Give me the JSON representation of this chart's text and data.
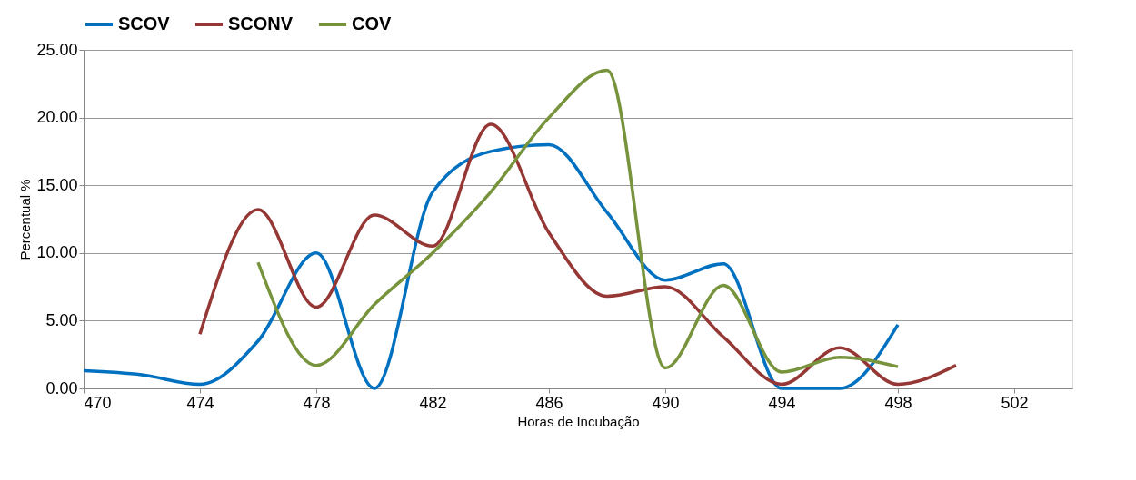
{
  "chart_data": {
    "type": "line",
    "xlabel": "Horas de Incubação",
    "ylabel": "Percentual %",
    "xlim": [
      470,
      504
    ],
    "xticks": [
      470,
      474,
      478,
      482,
      486,
      490,
      494,
      498,
      502
    ],
    "ylim": [
      0,
      25
    ],
    "yticks": [
      {
        "value": 0,
        "label": "0.00"
      },
      {
        "value": 5,
        "label": "5.00"
      },
      {
        "value": 10,
        "label": "10.00"
      },
      {
        "value": 15,
        "label": "15.00"
      },
      {
        "value": 20,
        "label": "20.00"
      },
      {
        "value": 25,
        "label": "25.00"
      }
    ],
    "grid": "y",
    "legend": "top",
    "marker": "none",
    "line_style": "solid",
    "series": [
      {
        "name": "SCOV",
        "color": "#0070c0",
        "x": [
          470,
          472,
          474,
          476,
          478,
          480,
          482,
          484,
          486,
          488,
          490,
          492,
          494,
          496,
          498
        ],
        "values": [
          1.3,
          1.0,
          0.3,
          3.5,
          10.0,
          0.0,
          14.5,
          17.5,
          18.0,
          13.0,
          8.0,
          9.2,
          0.0,
          0.0,
          4.7
        ]
      },
      {
        "name": "SCONV",
        "color": "#953735",
        "x": [
          474,
          476,
          478,
          480,
          482,
          484,
          486,
          488,
          490,
          492,
          494,
          496,
          498,
          500
        ],
        "values": [
          4.0,
          13.2,
          6.0,
          12.8,
          10.5,
          19.5,
          11.5,
          6.8,
          7.5,
          3.8,
          0.3,
          3.0,
          0.3,
          1.7
        ]
      },
      {
        "name": "COV",
        "color": "#77933c",
        "x": [
          476,
          478,
          480,
          482,
          484,
          486,
          488,
          490,
          492,
          494,
          496,
          498
        ],
        "values": [
          9.3,
          1.7,
          6.2,
          10.0,
          14.5,
          20.0,
          23.5,
          1.5,
          7.6,
          1.2,
          2.3,
          1.6
        ]
      }
    ]
  }
}
